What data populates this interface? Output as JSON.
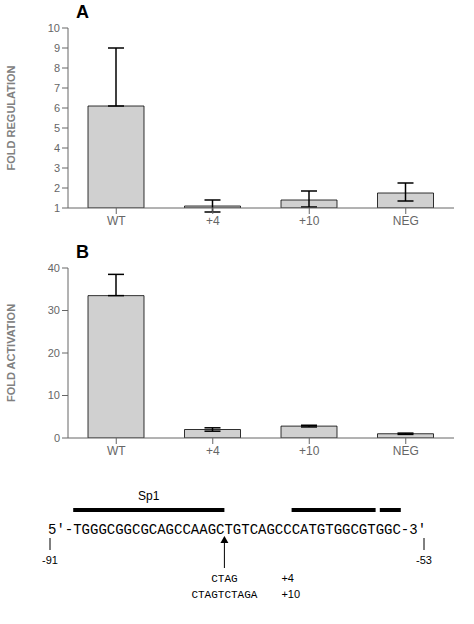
{
  "chart_data": [
    {
      "type": "bar",
      "title": "A",
      "categories": [
        "WT",
        "+4",
        "+10",
        "NEG"
      ],
      "values": [
        6.1,
        1.1,
        1.4,
        1.75
      ],
      "errors_up": [
        2.9,
        0.3,
        0.45,
        0.5
      ],
      "errors_down": [
        0.0,
        0.3,
        0.35,
        0.4
      ],
      "y_label": "FOLD REGULATION",
      "ylim": [
        1,
        10
      ],
      "yticks": [
        1,
        2,
        3,
        4,
        5,
        6,
        7,
        8,
        9,
        10
      ],
      "color": "#d0d0d0",
      "grid": false
    },
    {
      "type": "bar",
      "title": "B",
      "categories": [
        "WT",
        "+4",
        "+10",
        "NEG"
      ],
      "values": [
        33.5,
        2.0,
        2.8,
        1.0
      ],
      "errors_up": [
        5.0,
        0.4,
        0.2,
        0.15
      ],
      "errors_down": [
        0.0,
        0.4,
        0.2,
        0.15
      ],
      "y_label": "FOLD ACTIVATION",
      "ylim": [
        0,
        40
      ],
      "yticks": [
        0,
        10,
        20,
        30,
        40
      ],
      "color": "#d0d0d0",
      "grid": false,
      "annotations": [
        "5'-TGGGCGGCGCAGCCAAGCTGTCAGCCCATGTGGCGTGGC-3'",
        "-91",
        "-53",
        "Sp1",
        "CTAG",
        "CTAGTCTAGA",
        "+4",
        "+10"
      ]
    }
  ]
}
